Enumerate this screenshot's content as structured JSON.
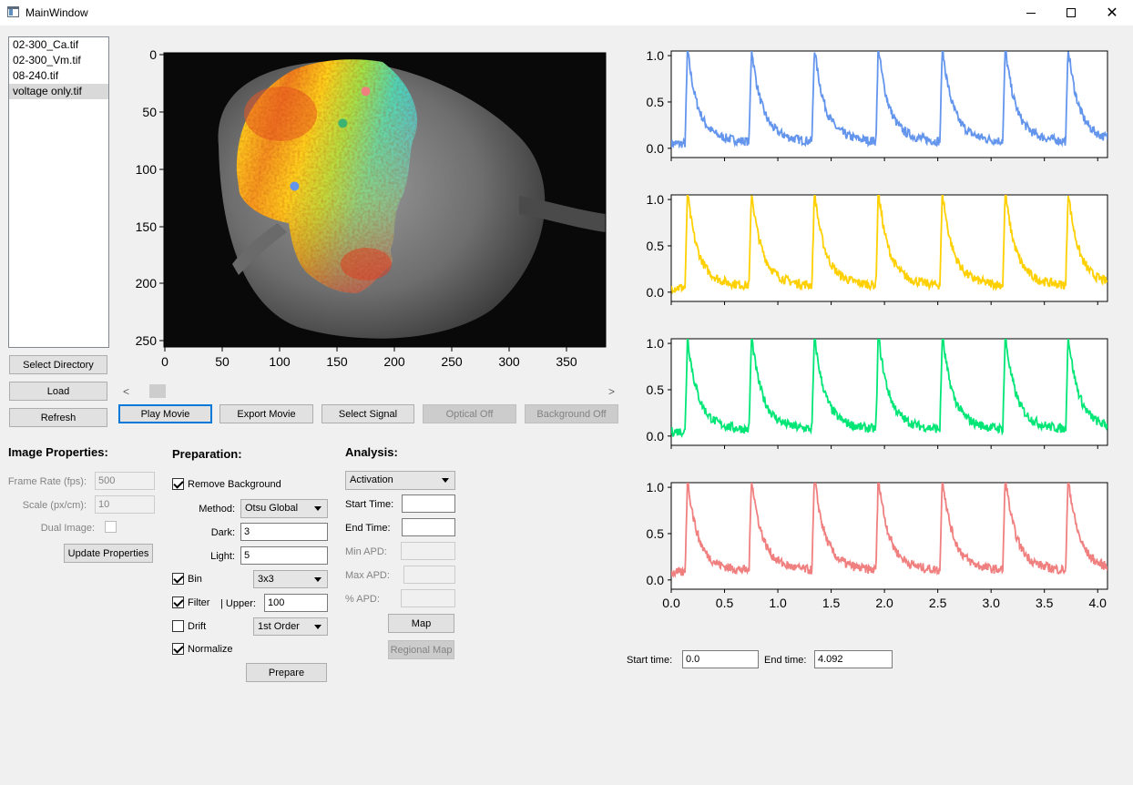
{
  "window": {
    "title": "MainWindow"
  },
  "files": [
    "02-300_Ca.tif",
    "02-300_Vm.tif",
    "08-240.tif",
    "voltage only.tif"
  ],
  "file_buttons": {
    "select_directory": "Select Directory",
    "load": "Load",
    "refresh": "Refresh"
  },
  "image_view": {
    "y_ticks": [
      "0",
      "50",
      "100",
      "150",
      "200",
      "250"
    ],
    "x_ticks": [
      "0",
      "50",
      "100",
      "150",
      "200",
      "250",
      "300",
      "350"
    ],
    "points": [
      {
        "name": "red-point",
        "x": 175,
        "y": 32,
        "color": "#f08080"
      },
      {
        "name": "green-point",
        "x": 155,
        "y": 60,
        "color": "#3cb371"
      },
      {
        "name": "blue-point",
        "x": 113,
        "y": 115,
        "color": "#6495ed"
      }
    ]
  },
  "scrollbar": {
    "left_arrow": "<",
    "right_arrow": ">"
  },
  "movie_buttons": {
    "play": "Play Movie",
    "export": "Export Movie",
    "select_signal": "Select Signal",
    "optical_off": "Optical Off",
    "background_off": "Background Off"
  },
  "image_properties": {
    "heading": "Image Properties:",
    "frame_rate_label": "Frame Rate (fps):",
    "frame_rate_value": "500",
    "scale_label": "Scale (px/cm):",
    "scale_value": "10",
    "dual_image_label": "Dual Image:",
    "dual_image_checked": false,
    "update_button": "Update Properties"
  },
  "preparation": {
    "heading": "Preparation:",
    "remove_background_label": "Remove Background",
    "remove_background_checked": true,
    "method_label": "Method:",
    "method_value": "Otsu Global",
    "dark_label": "Dark:",
    "dark_value": "3",
    "light_label": "Light:",
    "light_value": "5",
    "bin_label": "Bin",
    "bin_checked": true,
    "bin_value": "3x3",
    "filter_label": "Filter",
    "filter_checked": true,
    "upper_label": "|  Upper:",
    "upper_value": "100",
    "drift_label": "Drift",
    "drift_checked": false,
    "drift_value": "1st Order",
    "normalize_label": "Normalize",
    "normalize_checked": true,
    "prepare_button": "Prepare"
  },
  "analysis": {
    "heading": "Analysis:",
    "type_value": "Activation",
    "start_time_label": "Start Time:",
    "start_time_value": "",
    "end_time_label": "End Time:",
    "end_time_value": "",
    "min_apd_label": "Min APD:",
    "max_apd_label": "Max APD:",
    "pct_apd_label": "% APD:",
    "map_button": "Map",
    "regional_map_button": "Regional Map"
  },
  "time_range": {
    "start_label": "Start time:",
    "start_value": "0.0",
    "end_label": "End time:",
    "end_value": "4.092"
  },
  "chart_data": {
    "type": "line",
    "series": [
      {
        "color": "#6495ed",
        "baseline": 0.05,
        "noise": 0.05
      },
      {
        "color": "#ffd000",
        "baseline": 0.05,
        "noise": 0.05
      },
      {
        "color": "#00e676",
        "baseline": 0.05,
        "noise": 0.05
      },
      {
        "color": "#f08080",
        "baseline": 0.08,
        "noise": 0.05
      }
    ],
    "peak_times": [
      0.15,
      0.75,
      1.34,
      1.94,
      2.54,
      3.13,
      3.72
    ],
    "xlim": [
      0.0,
      4.092
    ],
    "ylim": [
      -0.1,
      1.05
    ],
    "y_ticks": [
      "0.0",
      "0.5",
      "1.0"
    ],
    "x_ticks": [
      "0.0",
      "0.5",
      "1.0",
      "1.5",
      "2.0",
      "2.5",
      "3.0",
      "3.5",
      "4.0"
    ]
  },
  "colors": {
    "accent": "#0078d7",
    "background": "#f0f0f0",
    "heatmap_high": "#e6391c",
    "heatmap_low": "#36c8e6"
  }
}
